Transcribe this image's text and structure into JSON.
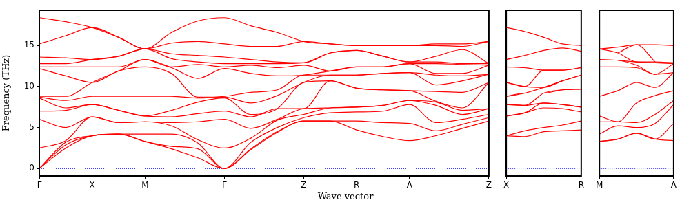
{
  "chart_data": [
    {
      "type": "line",
      "ylabel": "Frequency (THz)",
      "xlabel": "Wave vector",
      "grid": false,
      "legend": false,
      "marker": "none",
      "line_style": "solid",
      "categories": [
        "Γ",
        null,
        "X",
        null,
        "M",
        null,
        null,
        "Γ",
        null,
        null,
        "Z",
        null,
        "R",
        null,
        "A",
        null,
        null,
        "Z"
      ],
      "ylim": [
        -0.9,
        19.3
      ],
      "yticks": [
        0,
        5,
        10,
        15
      ],
      "ref_lines": [
        {
          "axis": "y",
          "value": 0,
          "color": "#0000ff",
          "line_style": "dotted"
        }
      ],
      "series": [
        {
          "color": "#ff0000",
          "values": [
            0,
            2.5,
            4.0,
            4.2,
            3.3,
            2.4,
            1.3,
            0,
            2.3,
            4.4,
            5.8,
            5.8,
            4.7,
            3.9,
            3.4,
            4.0,
            4.9,
            5.8
          ]
        },
        {
          "color": "#ff0000",
          "values": [
            0,
            2.9,
            4.0,
            4.2,
            3.3,
            2.7,
            2.4,
            0,
            2.4,
            4.5,
            5.8,
            5.8,
            5.8,
            5.6,
            5.5,
            4.6,
            5.4,
            6.2
          ]
        },
        {
          "color": "#ff0000",
          "values": [
            0,
            3.2,
            4.0,
            4.2,
            4.2,
            4.2,
            3.1,
            0,
            3.2,
            5.0,
            6.2,
            6.8,
            6.9,
            7.0,
            7.8,
            5.6,
            6.0,
            6.6
          ]
        },
        {
          "color": "#ff0000",
          "values": [
            2.5,
            3.4,
            6.3,
            5.6,
            5.7,
            5.2,
            3.5,
            2.5,
            3.7,
            5.9,
            6.6,
            7.4,
            7.5,
            7.7,
            8.3,
            7.7,
            6.6,
            7.3
          ]
        },
        {
          "color": "#ff0000",
          "values": [
            6.0,
            5.0,
            6.3,
            5.6,
            5.7,
            5.6,
            5.7,
            6.0,
            4.9,
            6.0,
            7.3,
            7.4,
            7.5,
            7.7,
            8.3,
            8.1,
            7.1,
            7.3
          ]
        },
        {
          "color": "#ff0000",
          "values": [
            7.0,
            7.1,
            7.8,
            7.1,
            6.4,
            6.3,
            6.7,
            7.0,
            6.3,
            7.3,
            7.3,
            10.7,
            9.8,
            9.6,
            9.5,
            8.2,
            7.4,
            10.5
          ]
        },
        {
          "color": "#ff0000",
          "values": [
            8.6,
            7.4,
            7.8,
            7.1,
            6.4,
            7.1,
            8.1,
            8.6,
            6.6,
            7.3,
            10.5,
            10.7,
            9.8,
            9.6,
            9.5,
            9.4,
            9.3,
            10.5
          ]
        },
        {
          "color": "#ff0000",
          "values": [
            8.7,
            8.3,
            8.8,
            8.8,
            8.8,
            8.8,
            8.6,
            8.7,
            8.0,
            8.9,
            10.5,
            11.4,
            11.4,
            11.6,
            11.7,
            10.2,
            10.7,
            11.5
          ]
        },
        {
          "color": "#ff0000",
          "values": [
            8.8,
            8.8,
            10.5,
            11.9,
            13.3,
            12.3,
            11.0,
            12.2,
            11.6,
            11.3,
            11.4,
            11.9,
            12.4,
            12.4,
            12.8,
            11.6,
            11.6,
            12.6
          ]
        },
        {
          "color": "#ff0000",
          "values": [
            12.2,
            11.3,
            10.5,
            11.9,
            12.4,
            11.6,
            8.7,
            8.8,
            9.3,
            9.6,
            11.4,
            11.4,
            11.4,
            11.6,
            11.7,
            11.4,
            11.3,
            11.5
          ]
        },
        {
          "color": "#ff0000",
          "values": [
            12.4,
            12.4,
            12.4,
            12.4,
            13.3,
            12.4,
            12.7,
            12.4,
            12.6,
            12.3,
            12.6,
            11.9,
            12.4,
            12.4,
            12.8,
            12.8,
            12.7,
            12.6
          ]
        },
        {
          "color": "#ff0000",
          "values": [
            12.8,
            12.8,
            13.3,
            13.7,
            14.6,
            13.4,
            13.0,
            12.8,
            12.8,
            12.8,
            12.9,
            14.1,
            14.4,
            13.7,
            13.0,
            13.0,
            12.8,
            12.8
          ]
        },
        {
          "color": "#ff0000",
          "values": [
            13.6,
            13.5,
            13.3,
            13.7,
            14.6,
            14.0,
            13.8,
            13.6,
            13.3,
            13.0,
            12.9,
            14.1,
            14.4,
            13.7,
            13.0,
            13.7,
            14.5,
            12.8
          ]
        },
        {
          "color": "#ff0000",
          "values": [
            15.2,
            16.2,
            17.2,
            16.0,
            14.6,
            15.3,
            15.5,
            15.2,
            14.9,
            14.9,
            15.5,
            15.2,
            15.0,
            15.0,
            15.0,
            15.0,
            14.9,
            15.5
          ]
        },
        {
          "color": "#ff0000",
          "values": [
            18.4,
            17.9,
            17.2,
            16.0,
            14.6,
            16.6,
            18.0,
            18.4,
            17.4,
            16.6,
            15.5,
            15.2,
            15.0,
            15.0,
            15.0,
            15.2,
            15.2,
            15.5
          ]
        }
      ]
    },
    {
      "type": "line",
      "grid": false,
      "legend": false,
      "marker": "none",
      "line_style": "solid",
      "tick_labels": "x",
      "categories": [
        "X",
        null,
        null,
        null,
        "R"
      ],
      "ylim": [
        -0.9,
        19.3
      ],
      "yticks": [
        0,
        5,
        10,
        15
      ],
      "ref_lines": [
        {
          "axis": "y",
          "value": 0,
          "color": "#0000ff",
          "line_style": "dotted"
        }
      ],
      "series": [
        {
          "color": "#ff0000",
          "values": [
            4.0,
            3.9,
            4.5,
            4.6,
            4.7
          ]
        },
        {
          "color": "#ff0000",
          "values": [
            4.0,
            4.6,
            5.0,
            5.3,
            5.8
          ]
        },
        {
          "color": "#ff0000",
          "values": [
            6.4,
            6.8,
            7.4,
            7.3,
            6.9
          ]
        },
        {
          "color": "#ff0000",
          "values": [
            6.4,
            6.8,
            8.0,
            7.8,
            7.5
          ]
        },
        {
          "color": "#ff0000",
          "values": [
            7.8,
            7.7,
            8.0,
            7.8,
            7.5
          ]
        },
        {
          "color": "#ff0000",
          "values": [
            7.8,
            7.7,
            9.2,
            9.6,
            9.7
          ]
        },
        {
          "color": "#ff0000",
          "values": [
            8.8,
            9.2,
            9.2,
            9.6,
            9.7
          ]
        },
        {
          "color": "#ff0000",
          "values": [
            8.8,
            9.2,
            9.9,
            10.7,
            11.4
          ]
        },
        {
          "color": "#ff0000",
          "values": [
            10.5,
            10.0,
            9.9,
            10.7,
            11.4
          ]
        },
        {
          "color": "#ff0000",
          "values": [
            10.5,
            10.0,
            12.0,
            12.0,
            12.3
          ]
        },
        {
          "color": "#ff0000",
          "values": [
            12.4,
            12.3,
            12.0,
            12.0,
            12.3
          ]
        },
        {
          "color": "#ff0000",
          "values": [
            13.3,
            13.8,
            14.4,
            14.7,
            14.3
          ]
        },
        {
          "color": "#ff0000",
          "values": [
            17.2,
            16.7,
            16.0,
            15.2,
            15.0
          ]
        }
      ]
    },
    {
      "type": "line",
      "grid": false,
      "legend": false,
      "marker": "none",
      "line_style": "solid",
      "tick_labels": "x",
      "categories": [
        "M",
        null,
        null,
        null,
        "A"
      ],
      "ylim": [
        -0.9,
        19.3
      ],
      "yticks": [
        0,
        5,
        10,
        15
      ],
      "ref_lines": [
        {
          "axis": "y",
          "value": 0,
          "color": "#0000ff",
          "line_style": "dotted"
        }
      ],
      "series": [
        {
          "color": "#ff0000",
          "values": [
            3.3,
            3.6,
            4.3,
            3.6,
            3.4
          ]
        },
        {
          "color": "#ff0000",
          "values": [
            3.3,
            3.6,
            4.3,
            3.6,
            5.5
          ]
        },
        {
          "color": "#ff0000",
          "values": [
            4.2,
            5.2,
            5.0,
            5.5,
            7.8
          ]
        },
        {
          "color": "#ff0000",
          "values": [
            5.7,
            5.7,
            5.6,
            6.6,
            8.3
          ]
        },
        {
          "color": "#ff0000",
          "values": [
            6.4,
            5.7,
            8.0,
            8.9,
            9.5
          ]
        },
        {
          "color": "#ff0000",
          "values": [
            8.8,
            9.5,
            10.5,
            9.9,
            11.7
          ]
        },
        {
          "color": "#ff0000",
          "values": [
            12.4,
            12.4,
            12.3,
            11.5,
            11.7
          ]
        },
        {
          "color": "#ff0000",
          "values": [
            13.3,
            13.2,
            12.6,
            11.5,
            12.8
          ]
        },
        {
          "color": "#ff0000",
          "values": [
            null,
            13.2,
            13.0,
            12.9,
            12.8
          ]
        },
        {
          "color": "#ff0000",
          "values": [
            14.6,
            14.1,
            13.0,
            13.0,
            12.9
          ]
        },
        {
          "color": "#ff0000",
          "values": [
            null,
            14.1,
            15.1,
            13.0,
            null
          ]
        },
        {
          "color": "#ff0000",
          "values": [
            14.6,
            14.8,
            15.1,
            15.1,
            15.0
          ]
        }
      ]
    }
  ]
}
